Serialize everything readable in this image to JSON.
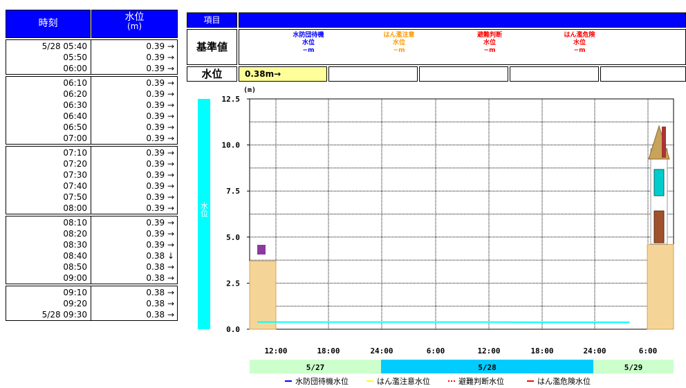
{
  "left_table": {
    "header_time": "時刻",
    "header_level": "水位",
    "header_unit": "(m)",
    "groups": [
      [
        [
          "5/28 05:40",
          "0.39 →"
        ],
        [
          "05:50",
          "0.39 →"
        ],
        [
          "06:00",
          "0.39 →"
        ]
      ],
      [
        [
          "06:10",
          "0.39 →"
        ],
        [
          "06:20",
          "0.39 →"
        ],
        [
          "06:30",
          "0.39 →"
        ],
        [
          "06:40",
          "0.39 →"
        ],
        [
          "06:50",
          "0.39 →"
        ],
        [
          "07:00",
          "0.39 →"
        ]
      ],
      [
        [
          "07:10",
          "0.39 →"
        ],
        [
          "07:20",
          "0.39 →"
        ],
        [
          "07:30",
          "0.39 →"
        ],
        [
          "07:40",
          "0.39 →"
        ],
        [
          "07:50",
          "0.39 →"
        ],
        [
          "08:00",
          "0.39 →"
        ]
      ],
      [
        [
          "08:10",
          "0.39 →"
        ],
        [
          "08:20",
          "0.39 →"
        ],
        [
          "08:30",
          "0.39 →"
        ],
        [
          "08:40",
          "0.38 ↓"
        ],
        [
          "08:50",
          "0.38 →"
        ],
        [
          "09:00",
          "0.38 →"
        ]
      ],
      [
        [
          "09:10",
          "0.38 →"
        ],
        [
          "09:20",
          "0.38 →"
        ],
        [
          "5/28 09:30",
          "0.38 →"
        ]
      ]
    ]
  },
  "info": {
    "item_header": "項目",
    "standard_label": "基準値",
    "level_label": "水位",
    "current_level": "0.38m→",
    "standards": [
      {
        "name1": "水防団待機",
        "name2": "水位",
        "value": "−m",
        "color": "#0000ff"
      },
      {
        "name1": "はん濫注意",
        "name2": "水位",
        "value": "−m",
        "color": "#ff9900"
      },
      {
        "name1": "避難判断",
        "name2": "水位",
        "value": "−m",
        "color": "#ff0000"
      },
      {
        "name1": "はん濫危険",
        "name2": "水位",
        "value": "−m",
        "color": "#ff0000"
      }
    ]
  },
  "chart_data": {
    "type": "line",
    "unit": "(m)",
    "side_label": "水位",
    "y_ticks": [
      "0.0",
      "2.5",
      "5.0",
      "7.5",
      "10.0",
      "12.5"
    ],
    "ylim": [
      0,
      12.5
    ],
    "x_ticks": [
      "12:00",
      "18:00",
      "24:00",
      "6:00",
      "12:00",
      "18:00",
      "24:00",
      "6:00"
    ],
    "date_labels": [
      "5/27",
      "5/28",
      "5/29"
    ],
    "series": [
      {
        "values": [
          0.39,
          0.39,
          0.39,
          0.39,
          0.39,
          0.39,
          0.38,
          0.38,
          0.38
        ],
        "x_hours_from_start": [
          0,
          6,
          12,
          18,
          24,
          30,
          36,
          42,
          48
        ]
      }
    ],
    "left_bank_height": 3.7,
    "right_bank_height": 4.6,
    "line_color": "#00ffff",
    "legend": [
      {
        "label": "水防団待機水位",
        "color": "#0000ff",
        "dash": false
      },
      {
        "label": "はん濫注意水位",
        "color": "#ffff00",
        "dash": false
      },
      {
        "label": "避難判断水位",
        "color": "#ff0000",
        "dash": true
      },
      {
        "label": "はん濫危険水位",
        "color": "#ff0000",
        "dash": false
      }
    ]
  }
}
